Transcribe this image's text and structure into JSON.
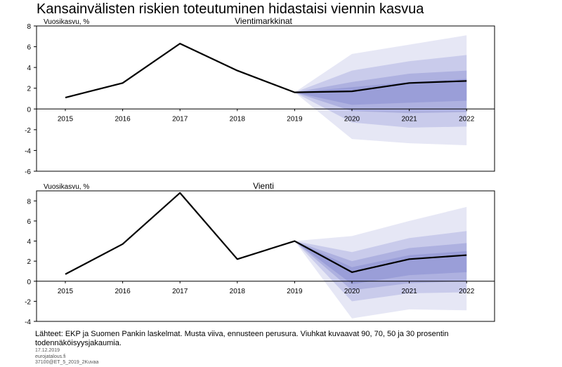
{
  "title": "Kansainvälisten riskien toteutuminen hidastaisi viennin kasvua",
  "colors": {
    "fan_outer": "#e6e7f5",
    "fan_2": "#c9cbeb",
    "fan_3": "#aeb1e0",
    "fan_inner": "#9a9ed8",
    "baseline": "#000000",
    "frame": "#000000"
  },
  "chart_data": [
    {
      "type": "area",
      "title": "Vientimarkkinat",
      "ylabel": "Vuosikasvu, %",
      "ylim": [
        -6,
        8
      ],
      "yticks": [
        "8",
        "6",
        "4",
        "2",
        "0",
        "-2",
        "-4",
        "-6"
      ],
      "categories": [
        "2015",
        "2016",
        "2017",
        "2018",
        "2019",
        "2020",
        "2021",
        "2022"
      ],
      "series": [
        {
          "values": [
            1.1,
            2.5,
            6.3,
            3.7,
            1.6,
            1.7,
            2.5,
            2.7
          ]
        }
      ],
      "fan": {
        "start_year": "2019",
        "bands": [
          {
            "probability": 90,
            "lower": [
              1.6,
              -2.9,
              -3.3,
              -3.5
            ],
            "upper": [
              1.6,
              5.3,
              6.2,
              7.1
            ]
          },
          {
            "probability": 70,
            "lower": [
              1.6,
              -1.3,
              -1.8,
              -1.7
            ],
            "upper": [
              1.6,
              3.7,
              4.6,
              5.2
            ]
          },
          {
            "probability": 50,
            "lower": [
              1.6,
              -0.2,
              -0.4,
              -0.3
            ],
            "upper": [
              1.6,
              2.6,
              3.4,
              3.7
            ]
          },
          {
            "probability": 30,
            "lower": [
              1.6,
              0.4,
              0.6,
              0.8
            ],
            "upper": [
              1.6,
              2.1,
              2.6,
              2.9
            ]
          }
        ]
      }
    },
    {
      "type": "area",
      "title": "Vienti",
      "ylabel": "Vuosikasvu, %",
      "ylim": [
        -4,
        9
      ],
      "yticks": [
        "8",
        "6",
        "4",
        "2",
        "0",
        "-2",
        "-4"
      ],
      "categories": [
        "2015",
        "2016",
        "2017",
        "2018",
        "2019",
        "2020",
        "2021",
        "2022"
      ],
      "series": [
        {
          "values": [
            0.7,
            3.7,
            8.8,
            2.2,
            4.0,
            0.9,
            2.2,
            2.6
          ]
        }
      ],
      "fan": {
        "start_year": "2019",
        "bands": [
          {
            "probability": 90,
            "lower": [
              4.0,
              -3.7,
              -2.8,
              -2.9
            ],
            "upper": [
              4.0,
              4.5,
              6.0,
              7.4
            ]
          },
          {
            "probability": 70,
            "lower": [
              4.0,
              -2.0,
              -1.2,
              -1.1
            ],
            "upper": [
              4.0,
              2.9,
              4.3,
              5.0
            ]
          },
          {
            "probability": 50,
            "lower": [
              4.0,
              -0.9,
              -0.2,
              0.0
            ],
            "upper": [
              4.0,
              2.0,
              3.3,
              3.8
            ]
          },
          {
            "probability": 30,
            "lower": [
              4.0,
              -0.3,
              0.6,
              0.9
            ],
            "upper": [
              4.0,
              1.4,
              2.6,
              3.0
            ]
          }
        ]
      }
    }
  ],
  "footer": {
    "source": "Lähteet: EKP ja Suomen Pankin laskelmat. Musta viiva, ennusteen perusura. Viuhkat kuvaavat 90, 70, 50 ja 30 prosentin todennäköisyysjakaumia.",
    "date": "17.12.2019",
    "site": "eurojatalous.fi",
    "code": "37100@ET_5_2019_2Kuvaa"
  }
}
